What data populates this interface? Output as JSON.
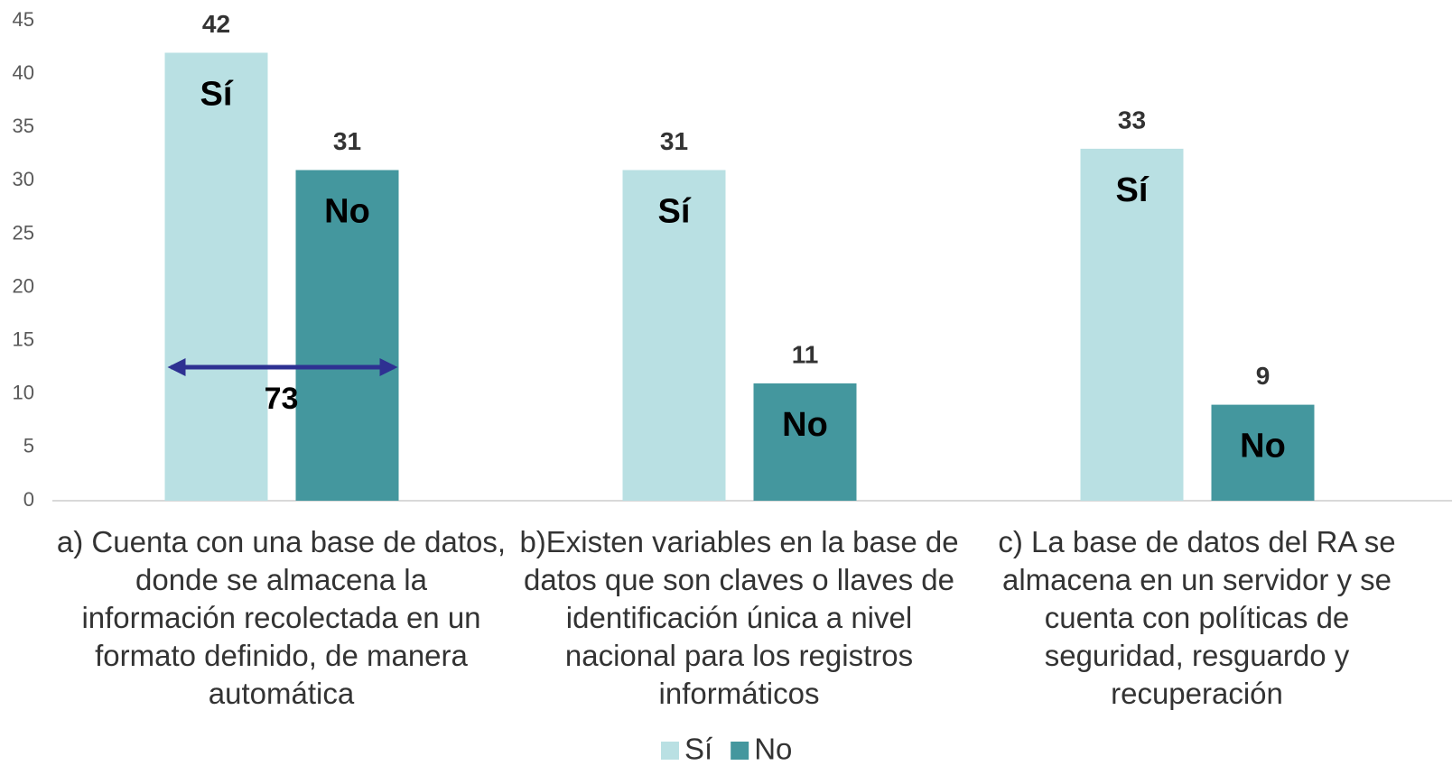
{
  "chart_data": {
    "type": "bar",
    "categories": [
      "a) Cuenta con una base de datos, donde se almacena la información recolectada en un formato definido, de manera automática",
      "b)Existen variables en la base de datos que son claves o llaves  de identificación única a nivel nacional para los registros informáticos",
      "c) La base de datos del RA se almacena en un servidor y se cuenta con políticas de seguridad, resguardo y recuperación"
    ],
    "series": [
      {
        "name": "Sí",
        "color": "#b9e0e3",
        "values": [
          42,
          31,
          33
        ]
      },
      {
        "name": "No",
        "color": "#44979e",
        "values": [
          31,
          11,
          9
        ]
      }
    ],
    "ylim": [
      0,
      45
    ],
    "yticks": [
      0,
      5,
      10,
      15,
      20,
      25,
      30,
      35,
      40,
      45
    ],
    "annotations": [
      {
        "text": "73"
      }
    ],
    "legend": "bottom"
  }
}
